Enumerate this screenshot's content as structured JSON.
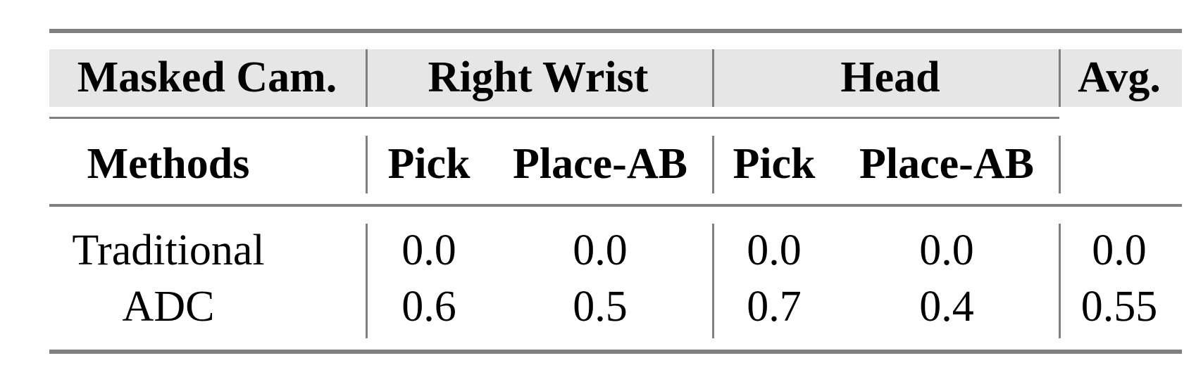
{
  "table": {
    "header_row1": {
      "masked_cam": "Masked Cam.",
      "right_wrist": "Right Wrist",
      "head": "Head",
      "avg": "Avg."
    },
    "header_row2": {
      "methods": "Methods",
      "cols": [
        "Pick",
        "Place-AB",
        "Pick",
        "Place-AB"
      ]
    },
    "rows": [
      {
        "method": "Traditional",
        "values": [
          "0.0",
          "0.0",
          "0.0",
          "0.0"
        ],
        "avg": "0.0"
      },
      {
        "method": "ADC",
        "values": [
          "0.6",
          "0.5",
          "0.7",
          "0.4"
        ],
        "avg": "0.55"
      }
    ],
    "colors": {
      "header_bg": "#e6e6e6",
      "rule": "#808080"
    }
  }
}
